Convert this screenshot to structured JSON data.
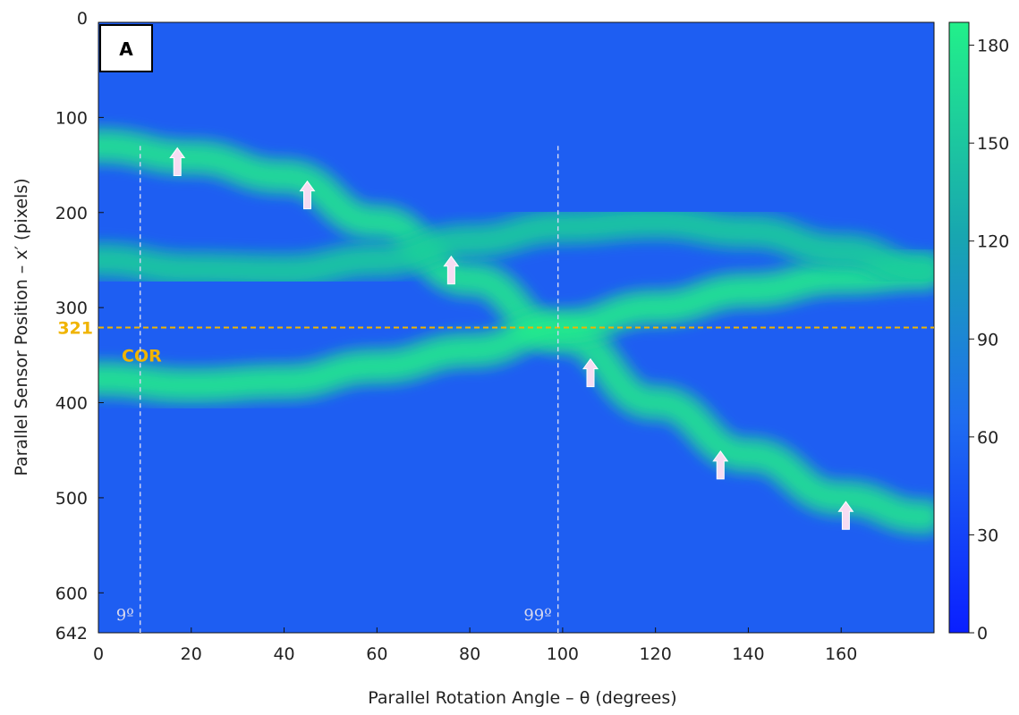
{
  "chart_data": {
    "type": "heatmap",
    "panel_label": "A",
    "xlabel": "Parallel Rotation Angle – θ (degrees)",
    "ylabel": "Parallel Sensor Position – x′ (pixels)",
    "xlim": [
      0,
      180
    ],
    "ylim": [
      642,
      0
    ],
    "x_ticks": [
      "0",
      "20",
      "40",
      "60",
      "80",
      "100",
      "120",
      "140",
      "160"
    ],
    "y_ticks": [
      "0",
      "100",
      "200",
      "300",
      "400",
      "500",
      "600",
      "642"
    ],
    "y_tick_values": [
      0,
      100,
      200,
      300,
      400,
      500,
      600,
      642
    ],
    "colorbar": {
      "ticks": [
        "0",
        "30",
        "60",
        "90",
        "120",
        "150",
        "180"
      ],
      "range": [
        0,
        187
      ],
      "colors": [
        "#0a1fff",
        "#1f6df0",
        "#18a6b0",
        "#22f08a"
      ]
    },
    "center_of_rotation": {
      "label": "COR",
      "value_label": "321",
      "y": 321,
      "color": "#f0b400"
    },
    "angle_markers": [
      {
        "x": 9,
        "label": "9º"
      },
      {
        "x": 99,
        "label": "99º"
      }
    ],
    "arrow_markers": [
      {
        "theta": 17,
        "x_prime": 148
      },
      {
        "theta": 45,
        "x_prime": 183
      },
      {
        "theta": 76,
        "x_prime": 262
      },
      {
        "theta": 106,
        "x_prime": 370
      },
      {
        "theta": 134,
        "x_prime": 467
      },
      {
        "theta": 161,
        "x_prime": 520
      }
    ],
    "sinogram_traces": [
      {
        "theta": [
          0,
          20,
          40,
          60,
          80,
          100,
          120,
          140,
          160,
          178
        ],
        "x_prime": [
          130,
          142,
          162,
          210,
          270,
          330,
          400,
          455,
          500,
          520
        ],
        "intensity": 160
      },
      {
        "theta": [
          0,
          20,
          40,
          60,
          80,
          100,
          120,
          140,
          160,
          178
        ],
        "x_prime": [
          375,
          382,
          378,
          362,
          345,
          320,
          300,
          282,
          268,
          263
        ],
        "intensity": 165
      },
      {
        "theta": [
          0,
          20,
          40,
          60,
          80,
          100,
          120,
          140,
          160,
          178
        ],
        "x_prime": [
          250,
          260,
          262,
          250,
          230,
          215,
          210,
          220,
          240,
          262
        ],
        "intensity": 140
      }
    ]
  }
}
